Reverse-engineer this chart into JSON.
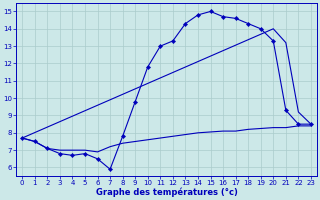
{
  "xlabel": "Graphe des températures (°c)",
  "background_color": "#cce8e8",
  "grid_color": "#aacccc",
  "line_color": "#0000bb",
  "xlim": [
    -0.5,
    23.5
  ],
  "ylim": [
    5.5,
    15.5
  ],
  "yticks": [
    6,
    7,
    8,
    9,
    10,
    11,
    12,
    13,
    14,
    15
  ],
  "xticks": [
    0,
    1,
    2,
    3,
    4,
    5,
    6,
    7,
    8,
    9,
    10,
    11,
    12,
    13,
    14,
    15,
    16,
    17,
    18,
    19,
    20,
    21,
    22,
    23
  ],
  "line1_x": [
    0,
    1,
    2,
    3,
    4,
    5,
    6,
    7,
    8,
    9,
    10,
    11,
    12,
    13,
    14,
    15,
    16,
    17,
    18,
    19,
    20,
    21,
    22,
    23
  ],
  "line1_y": [
    7.7,
    7.5,
    7.1,
    6.8,
    6.7,
    6.8,
    6.5,
    5.9,
    7.8,
    9.8,
    11.8,
    13.0,
    13.3,
    14.3,
    14.8,
    15.0,
    14.7,
    14.6,
    14.3,
    14.0,
    13.3,
    9.3,
    8.5,
    8.5
  ],
  "line2_x": [
    0,
    20,
    21,
    22,
    23
  ],
  "line2_y": [
    7.7,
    14.0,
    13.2,
    9.2,
    8.5
  ],
  "line3_x": [
    0,
    1,
    2,
    3,
    4,
    5,
    6,
    7,
    8,
    9,
    10,
    11,
    12,
    13,
    14,
    15,
    16,
    17,
    18,
    19,
    20,
    21,
    22,
    23
  ],
  "line3_y": [
    7.7,
    7.5,
    7.1,
    7.0,
    7.0,
    7.0,
    6.9,
    7.2,
    7.4,
    7.5,
    7.6,
    7.7,
    7.8,
    7.9,
    8.0,
    8.05,
    8.1,
    8.1,
    8.2,
    8.25,
    8.3,
    8.3,
    8.4,
    8.4
  ]
}
